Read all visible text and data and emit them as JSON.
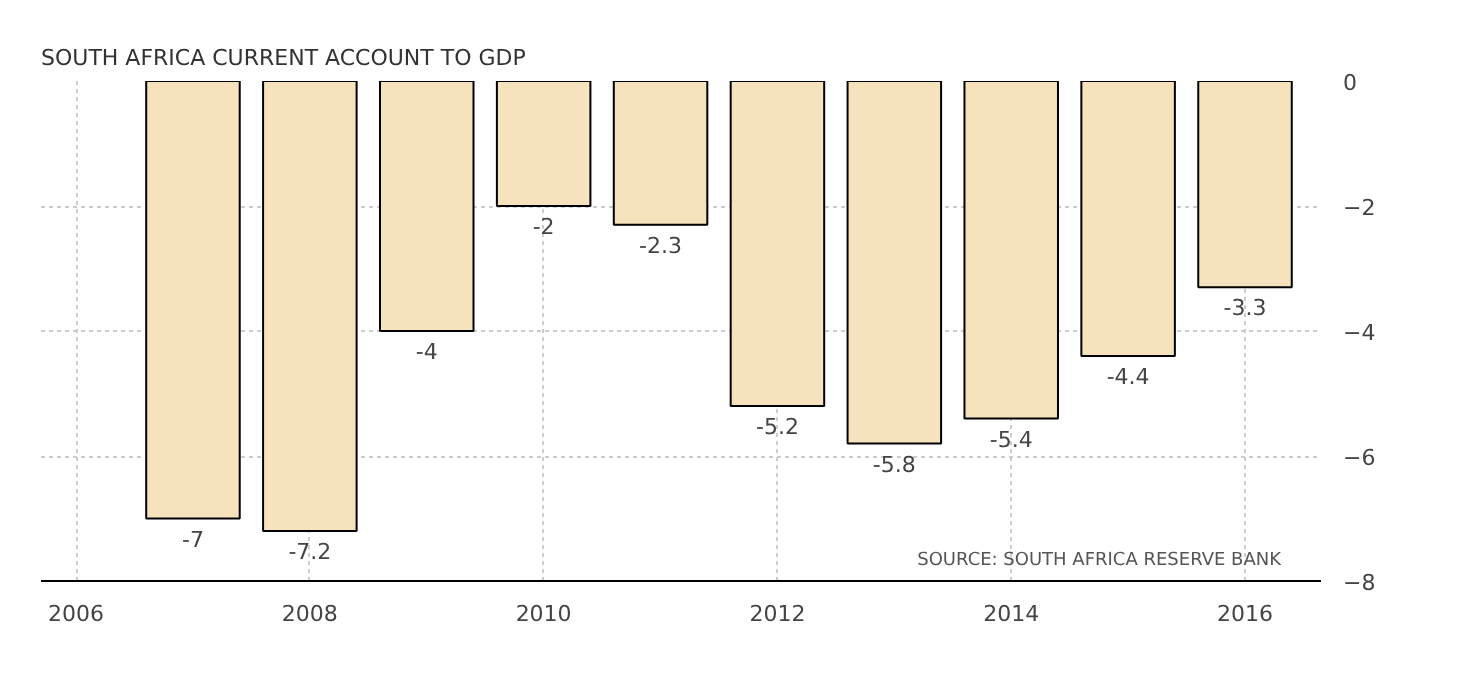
{
  "chart_data": {
    "type": "bar",
    "title": "SOUTH AFRICA CURRENT ACCOUNT TO GDP",
    "x": [
      2007,
      2008,
      2009,
      2010,
      2011,
      2012,
      2013,
      2014,
      2015,
      2016
    ],
    "values": [
      -7,
      -7.2,
      -4,
      -2,
      -2.3,
      -5.2,
      -5.8,
      -5.4,
      -4.4,
      -3.3
    ],
    "color": "#f6e2bd",
    "xlim": [
      2005.7,
      2016.65
    ],
    "xticks": [
      2006,
      2008,
      2010,
      2012,
      2014,
      2016
    ],
    "ylim": [
      -8,
      0
    ],
    "yticks": [
      0,
      -2,
      -4,
      -6,
      -8
    ],
    "grid": true,
    "data_labels": true,
    "annotations": [
      "SOURCE: SOUTH AFRICA RESERVE BANK"
    ]
  }
}
